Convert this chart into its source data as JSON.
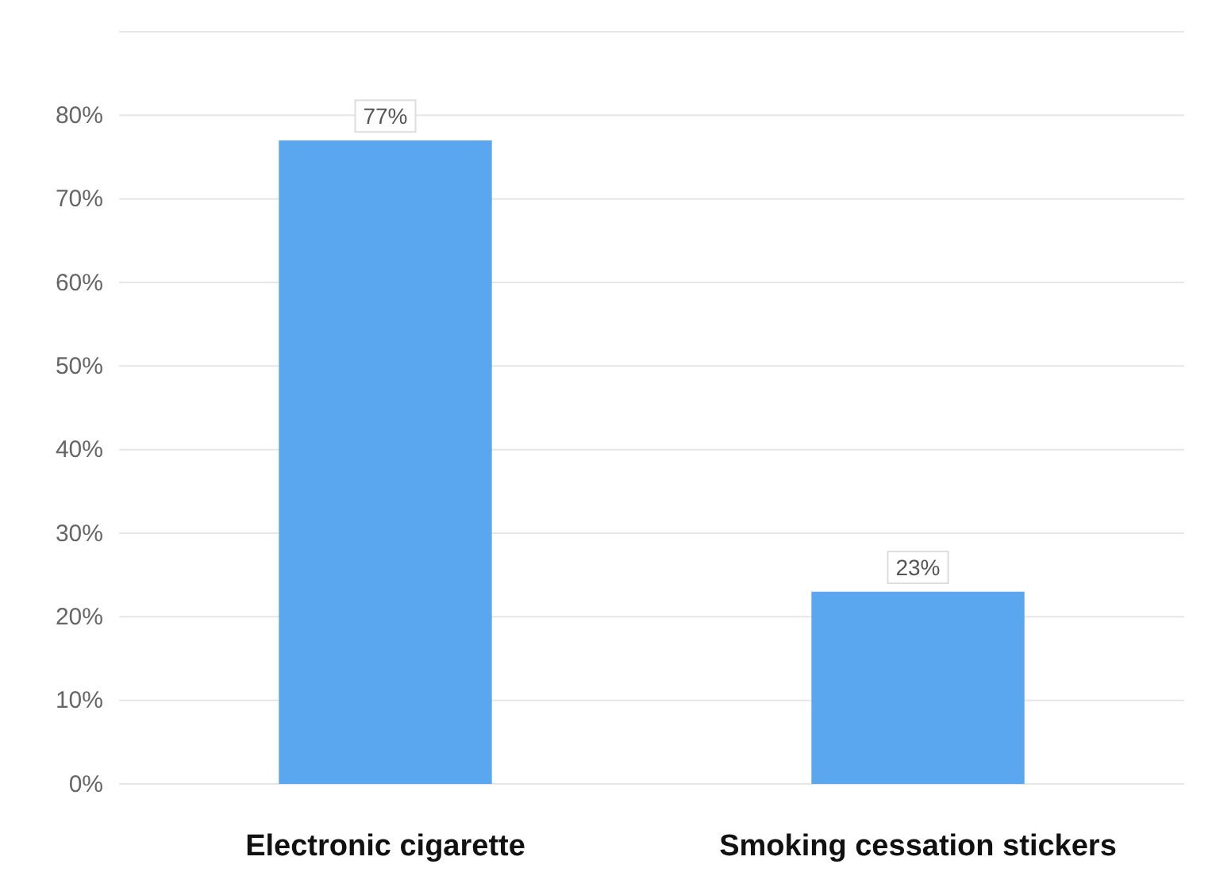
{
  "chart_data": {
    "type": "bar",
    "categories": [
      "Electronic cigarette",
      "Smoking cessation stickers"
    ],
    "values": [
      77,
      23
    ],
    "color": "#5aa7ef",
    "ylim": [
      0,
      90
    ],
    "yticks": [
      {
        "value": 0,
        "label": "0%"
      },
      {
        "value": 10,
        "label": "10%"
      },
      {
        "value": 20,
        "label": "20%"
      },
      {
        "value": 30,
        "label": "30%"
      },
      {
        "value": 40,
        "label": "40%"
      },
      {
        "value": 50,
        "label": "50%"
      },
      {
        "value": 60,
        "label": "60%"
      },
      {
        "value": 70,
        "label": "70%"
      },
      {
        "value": 80,
        "label": "80%"
      },
      {
        "value": 90,
        "label": null
      }
    ],
    "grid": true,
    "value_labels": [
      "77%",
      "23%"
    ]
  }
}
